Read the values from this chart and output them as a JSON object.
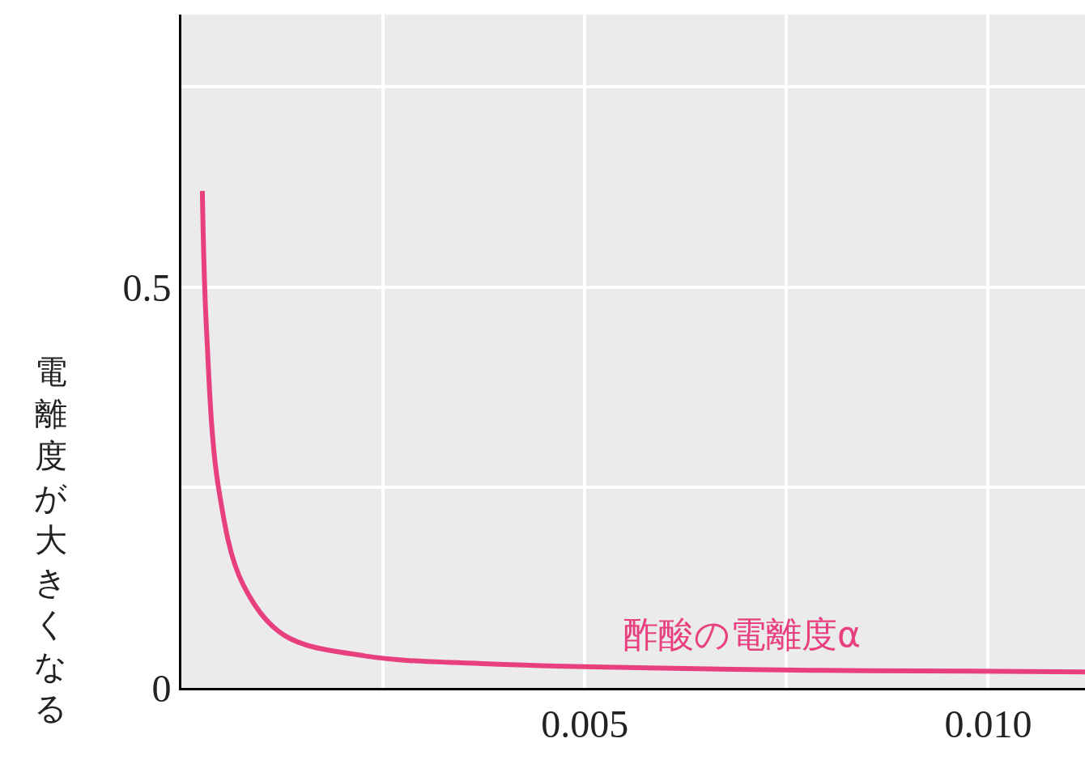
{
  "chart_data": {
    "type": "line",
    "ylabel": "電離度が大きくなる",
    "series": [
      {
        "name": "酢酸の電離度α",
        "color": "#e8407f",
        "x": [
          0.0112,
          0.0098,
          0.0078,
          0.0058,
          0.0038,
          0.00227,
          0.00127,
          0.00076,
          0.00046,
          0.00031,
          0.00026
        ],
        "values": [
          0.02,
          0.021,
          0.022,
          0.025,
          0.03,
          0.04,
          0.066,
          0.13,
          0.25,
          0.45,
          0.62
        ]
      }
    ],
    "xlim": [
      0,
      0.0112
    ],
    "ylim": [
      0,
      0.84
    ],
    "xticks": [
      {
        "value": 0.0025,
        "label": null
      },
      0.005,
      {
        "value": 0.0075,
        "label": null
      },
      {
        "value": 0.01,
        "label": "0.010"
      }
    ],
    "yticks": [
      0,
      {
        "value": 0.25,
        "label": null
      },
      0.5,
      {
        "value": 0.75,
        "label": null
      }
    ],
    "grid": true,
    "marker": "none",
    "line_style": "solid",
    "legend": false
  }
}
